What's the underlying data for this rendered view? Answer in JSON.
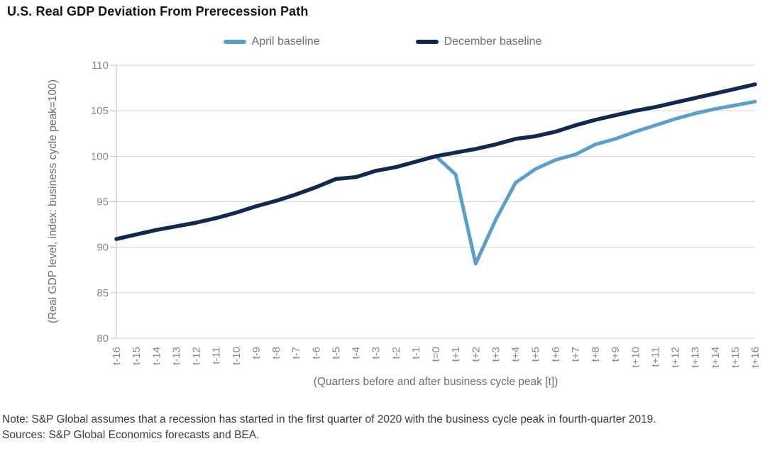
{
  "title": "U.S. Real GDP Deviation From Prerecession Path",
  "note": "Note: S&P Global assumes that a recession has started in the first quarter of 2020 with the business cycle peak in fourth-quarter 2019.",
  "sources": "Sources: S&P Global Economics forecasts and BEA.",
  "colors": {
    "april_baseline": "#5B9EC7",
    "december_baseline": "#12294B",
    "gridline": "#D6D6D6",
    "axis": "#BFBFBF",
    "tick_label": "#85888B"
  },
  "chart_data": {
    "type": "line",
    "title": "U.S. Real GDP Deviation From Prerecession Path",
    "xlabel": "(Quarters before and after business cycle peak [t])",
    "ylabel": "(Real GDP level, index: business cycle peak=100)",
    "ylim": [
      80,
      110
    ],
    "y_ticks": [
      80,
      85,
      90,
      95,
      100,
      105,
      110
    ],
    "grid": "horizontal",
    "legend_position": "top",
    "categories": [
      "t-16",
      "t-15",
      "t-14",
      "t-13",
      "t-12",
      "t-11",
      "t-10",
      "t-9",
      "t-8",
      "t-7",
      "t-6",
      "t-5",
      "t-4",
      "t-3",
      "t-2",
      "t-1",
      "t=0",
      "t+1",
      "t+2",
      "t+3",
      "t+4",
      "t+5",
      "t+6",
      "t+7",
      "t+8",
      "t+9",
      "t+10",
      "t+11",
      "t+12",
      "t+13",
      "t+14",
      "t+15",
      "t+16"
    ],
    "series": [
      {
        "name": "April baseline",
        "color": "#5B9EC7",
        "stroke_width": 5,
        "values": [
          null,
          null,
          null,
          null,
          null,
          null,
          null,
          null,
          null,
          null,
          null,
          null,
          null,
          null,
          null,
          null,
          100,
          98,
          88.2,
          93,
          97.1,
          98.6,
          99.6,
          100.2,
          101.3,
          101.9,
          102.7,
          103.4,
          104.1,
          104.7,
          105.2,
          105.6,
          106
        ]
      },
      {
        "name": "December baseline",
        "color": "#12294B",
        "stroke_width": 5.5,
        "values": [
          90.9,
          91.4,
          91.9,
          92.3,
          92.7,
          93.2,
          93.8,
          94.5,
          95.1,
          95.8,
          96.6,
          97.5,
          97.7,
          98.4,
          98.8,
          99.4,
          100,
          100.4,
          100.8,
          101.3,
          101.9,
          102.2,
          102.7,
          103.4,
          104,
          104.5,
          105,
          105.4,
          105.9,
          106.4,
          106.9,
          107.4,
          107.9
        ]
      }
    ]
  }
}
